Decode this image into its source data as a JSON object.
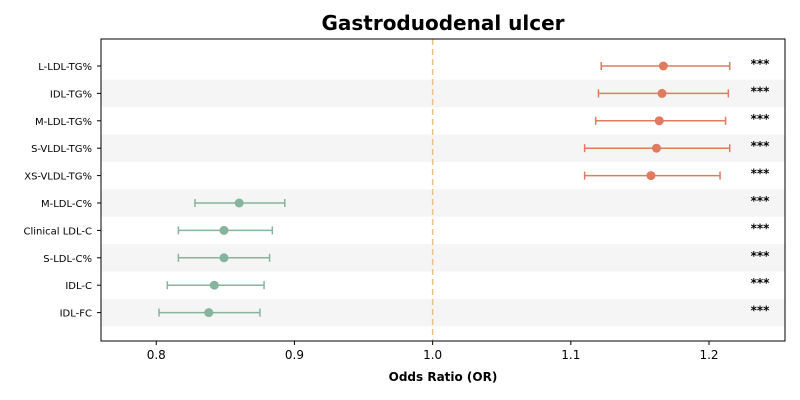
{
  "chart_data": {
    "type": "forest",
    "title": "Gastroduodenal ulcer",
    "xlabel": "Odds Ratio (OR)",
    "xlim": [
      0.76,
      1.255
    ],
    "xticks": [
      0.8,
      0.9,
      1.0,
      1.1,
      1.2
    ],
    "xtick_labels": [
      "0.8",
      "0.9",
      "1.0",
      "1.1",
      "1.2"
    ],
    "reference_line": 1.0,
    "colors": {
      "increase": "#e07b5f",
      "decrease": "#86b49c",
      "reference": "#f0c080",
      "band": "#f5f5f5"
    },
    "rows": [
      {
        "label": "L-LDL-TG%",
        "or": 1.167,
        "lo": 1.122,
        "hi": 1.215,
        "sig": "***"
      },
      {
        "label": "IDL-TG%",
        "or": 1.166,
        "lo": 1.12,
        "hi": 1.214,
        "sig": "***"
      },
      {
        "label": "M-LDL-TG%",
        "or": 1.164,
        "lo": 1.118,
        "hi": 1.212,
        "sig": "***"
      },
      {
        "label": "S-VLDL-TG%",
        "or": 1.162,
        "lo": 1.11,
        "hi": 1.215,
        "sig": "***"
      },
      {
        "label": "XS-VLDL-TG%",
        "or": 1.158,
        "lo": 1.11,
        "hi": 1.208,
        "sig": "***"
      },
      {
        "label": "M-LDL-C%",
        "or": 0.86,
        "lo": 0.828,
        "hi": 0.893,
        "sig": "***"
      },
      {
        "label": "Clinical LDL-C",
        "or": 0.849,
        "lo": 0.816,
        "hi": 0.884,
        "sig": "***"
      },
      {
        "label": "S-LDL-C%",
        "or": 0.849,
        "lo": 0.816,
        "hi": 0.882,
        "sig": "***"
      },
      {
        "label": "IDL-C",
        "or": 0.842,
        "lo": 0.808,
        "hi": 0.878,
        "sig": "***"
      },
      {
        "label": "IDL-FC",
        "or": 0.838,
        "lo": 0.802,
        "hi": 0.875,
        "sig": "***"
      }
    ]
  }
}
